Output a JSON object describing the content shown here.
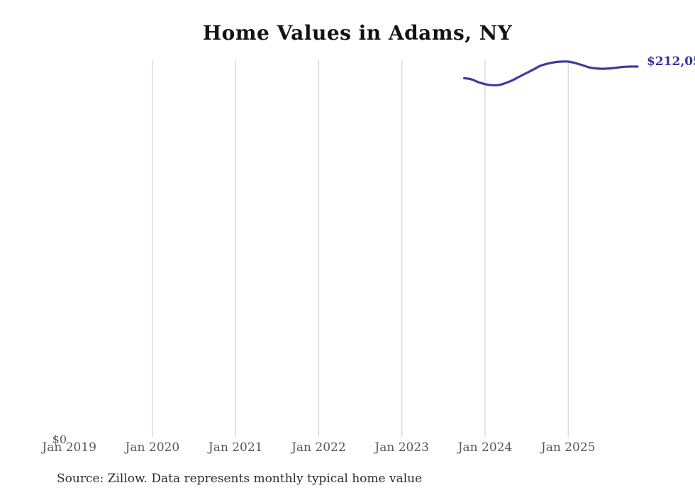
{
  "title": "Home Values in Adams, NY",
  "source_note": "Source: Zillow. Data represents monthly typical home value",
  "end_label": "$212,05",
  "y_axis": {
    "zero_label": "$0"
  },
  "x_axis": {
    "tick_labels": [
      "Jan 2019",
      "Jan 2020",
      "Jan 2021",
      "Jan 2022",
      "Jan 2023",
      "Jan 2024",
      "Jan 2025"
    ],
    "gridlines_at": [
      "Jan 2020",
      "Jan 2021",
      "Jan 2022",
      "Jan 2023",
      "Jan 2024",
      "Jan 2025"
    ]
  },
  "colors": {
    "line": "#3c3c9f",
    "end_label": "#32329a",
    "gridline": "#c9c9c9",
    "axis_label": "#58585a",
    "title": "#121212",
    "source": "#2d2d2d",
    "background": "#ffffff"
  },
  "chart_data": {
    "type": "line",
    "title": "Home Values in Adams, NY",
    "xlabel": "",
    "ylabel": "",
    "legend": "none",
    "gridlines": "vertical-yearly",
    "x_tick_labels": [
      "Jan 2019",
      "Jan 2020",
      "Jan 2021",
      "Jan 2022",
      "Jan 2023",
      "Jan 2024",
      "Jan 2025"
    ],
    "ylim": [
      0,
      230000
    ],
    "y_axis_start_label": "$0",
    "last_value_label": "$212,05",
    "last_value": 212050,
    "series": [
      {
        "name": "Monthly typical home value",
        "x": [
          "Oct 2023",
          "Nov 2023",
          "Dec 2023",
          "Jan 2024",
          "Feb 2024",
          "Mar 2024",
          "Apr 2024",
          "May 2024",
          "Jun 2024",
          "Jul 2024",
          "Aug 2024",
          "Sep 2024",
          "Oct 2024",
          "Nov 2024",
          "Dec 2024",
          "Jan 2025",
          "Feb 2025",
          "Mar 2025",
          "Apr 2025",
          "May 2025",
          "Jun 2025",
          "Jul 2025",
          "Aug 2025",
          "Sep 2025",
          "Oct 2025",
          "Nov 2025"
        ],
        "values": [
          205400,
          204800,
          203200,
          202000,
          201400,
          201500,
          202700,
          204300,
          206400,
          208400,
          210400,
          212500,
          213700,
          214500,
          214900,
          214900,
          214100,
          212900,
          211600,
          211000,
          210800,
          211000,
          211400,
          211900,
          212050,
          212050
        ]
      }
    ]
  }
}
